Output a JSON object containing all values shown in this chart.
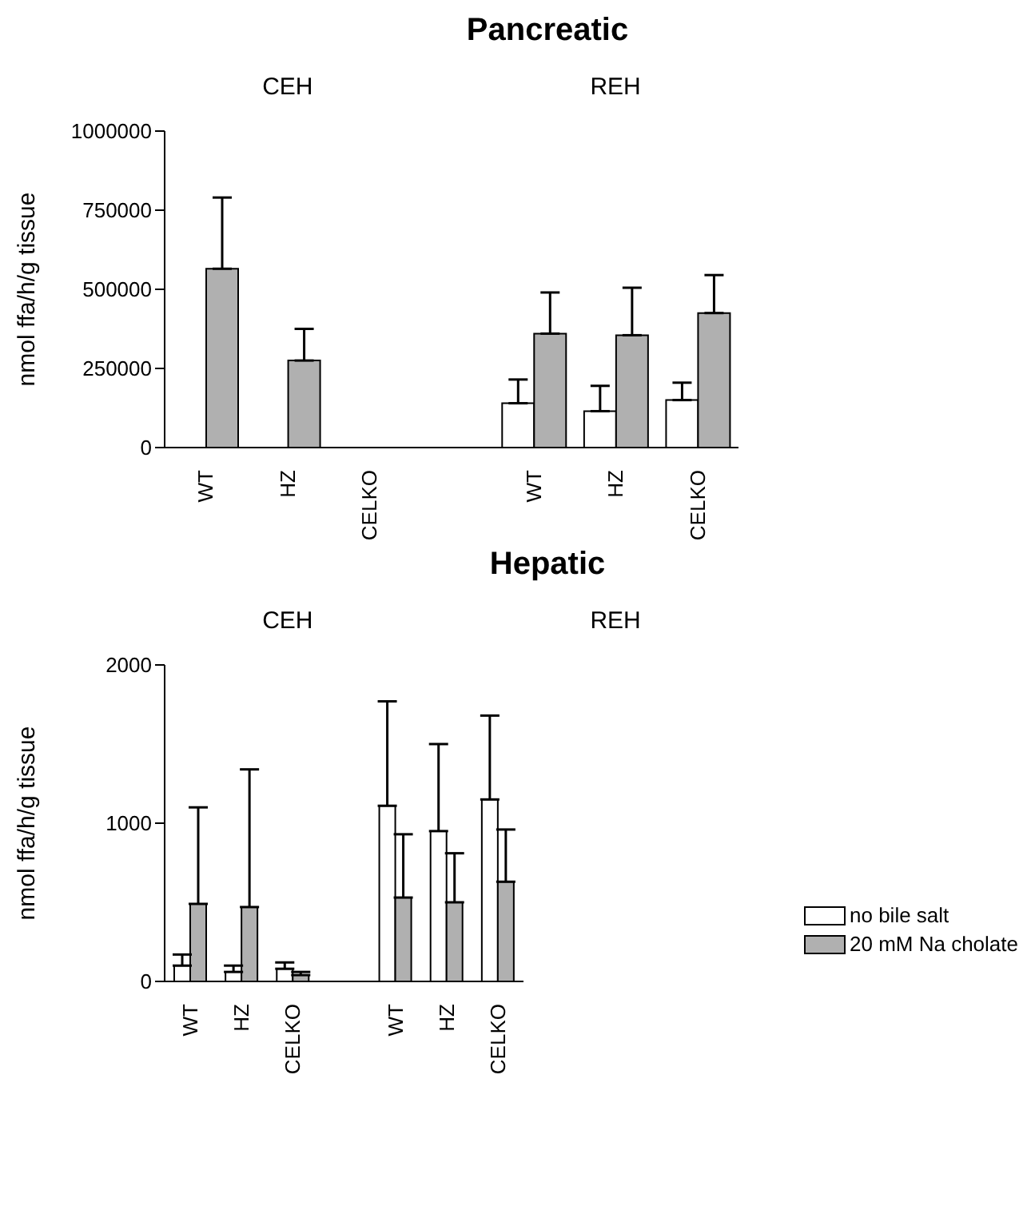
{
  "chart_data": [
    {
      "type": "bar",
      "title": "Pancreatic",
      "ylabel": "nmol ffa/h/g tissue",
      "annotations": [
        "CEH",
        "REH"
      ],
      "categories": [
        "WT",
        "HZ",
        "CELKO",
        null,
        "WT",
        "HZ",
        "CELKO"
      ],
      "series": [
        {
          "color": "#ffffff",
          "values": [
            0,
            0,
            0,
            null,
            140000,
            115000,
            150000
          ],
          "errors": [
            null,
            null,
            null,
            null,
            [
              140000,
              215000
            ],
            [
              115000,
              195000
            ],
            [
              150000,
              205000
            ]
          ]
        },
        {
          "color": "#b0b0b0",
          "values": [
            565000,
            275000,
            0,
            null,
            360000,
            355000,
            425000
          ],
          "errors": [
            [
              565000,
              790000
            ],
            [
              275000,
              375000
            ],
            null,
            null,
            [
              360000,
              490000
            ],
            [
              355000,
              505000
            ],
            [
              425000,
              545000
            ]
          ]
        }
      ],
      "ylim": [
        0,
        1000000
      ],
      "yticks": [
        0,
        250000,
        500000,
        750000,
        1000000
      ],
      "grid": false,
      "legend": false
    },
    {
      "type": "bar",
      "title": "Hepatic",
      "ylabel": "nmol ffa/h/g tissue",
      "annotations": [
        "CEH",
        "REH"
      ],
      "categories": [
        "WT",
        "HZ",
        "CELKO",
        null,
        "WT",
        "HZ",
        "CELKO"
      ],
      "series": [
        {
          "name": "no bile salt",
          "color": "#ffffff",
          "values": [
            100,
            60,
            80,
            null,
            1110,
            950,
            1150
          ],
          "errors": [
            [
              100,
              170
            ],
            [
              60,
              100
            ],
            [
              80,
              120
            ],
            null,
            [
              1110,
              1770
            ],
            [
              950,
              1500
            ],
            [
              1150,
              1680
            ]
          ]
        },
        {
          "name": "20 mM Na cholate",
          "color": "#b0b0b0",
          "values": [
            490,
            470,
            40,
            null,
            530,
            500,
            630
          ],
          "errors": [
            [
              490,
              1100
            ],
            [
              470,
              1340
            ],
            [
              40,
              60
            ],
            null,
            [
              530,
              930
            ],
            [
              500,
              810
            ],
            [
              630,
              960
            ]
          ]
        }
      ],
      "ylim": [
        0,
        2000
      ],
      "yticks": [
        0,
        1000,
        2000
      ],
      "grid": false,
      "legend": "right"
    }
  ]
}
